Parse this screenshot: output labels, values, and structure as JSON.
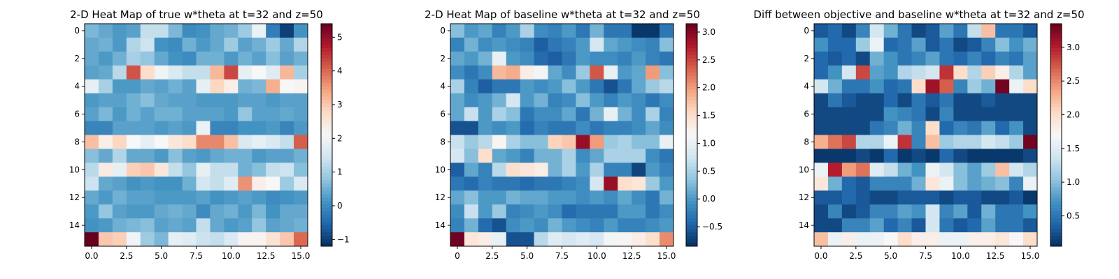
{
  "chart_data": [
    {
      "type": "heatmap",
      "title": "2-D Heat Map of true w*theta at t=32 and z=50",
      "xticks": [
        "0.0",
        "2.5",
        "5.0",
        "7.5",
        "10.0",
        "12.5",
        "15.0"
      ],
      "yticks": [
        "0",
        "2",
        "4",
        "6",
        "8",
        "10",
        "12",
        "14"
      ],
      "colorbar": {
        "min": -1.2,
        "max": 5.4,
        "ticks": [
          "−1",
          "0",
          "1",
          "2",
          "3",
          "4",
          "5"
        ],
        "tick_values": [
          -1,
          0,
          1,
          2,
          3,
          4,
          5
        ]
      },
      "colormap": "RdBu_r",
      "grid": false,
      "rows": [
        [
          0.6,
          0.4,
          0.2,
          0.3,
          1.3,
          1.3,
          0.6,
          0.0,
          0.1,
          0.4,
          0.5,
          0.9,
          1.9,
          -0.2,
          -1.0,
          0.1
        ],
        [
          0.4,
          0.5,
          0.2,
          1.1,
          1.4,
          0.1,
          0.0,
          0.5,
          0.2,
          0.4,
          0.9,
          0.3,
          0.5,
          0.9,
          0.4,
          1.1
        ],
        [
          0.4,
          0.2,
          0.5,
          1.0,
          0.8,
          0.4,
          0.1,
          0.0,
          0.5,
          0.5,
          0.2,
          0.5,
          0.3,
          0.7,
          0.3,
          0.5
        ],
        [
          0.3,
          0.4,
          1.2,
          4.2,
          2.7,
          2.0,
          1.6,
          1.3,
          1.3,
          3.2,
          4.3,
          1.8,
          2.1,
          1.7,
          3.2,
          1.0
        ],
        [
          1.8,
          1.0,
          0.2,
          0.2,
          0.4,
          0.3,
          0.5,
          0.3,
          1.8,
          2.8,
          2.3,
          0.5,
          0.6,
          3.3,
          2.1,
          2.2
        ],
        [
          0.2,
          0.3,
          0.3,
          0.5,
          0.7,
          0.4,
          0.3,
          0.3,
          0.2,
          0.2,
          0.2,
          0.3,
          0.3,
          0.2,
          0.3,
          0.3
        ],
        [
          0.3,
          0.6,
          0.2,
          0.5,
          0.3,
          0.5,
          0.5,
          0.3,
          0.3,
          0.3,
          0.2,
          0.8,
          0.3,
          0.3,
          0.4,
          0.3
        ],
        [
          -0.1,
          -0.1,
          0.3,
          0.3,
          0.3,
          0.2,
          0.3,
          0.2,
          1.9,
          -0.1,
          -0.1,
          0.1,
          0.1,
          0.2,
          -0.1,
          0.2
        ],
        [
          3.1,
          2.3,
          2.8,
          2.1,
          1.8,
          2.1,
          2.5,
          2.7,
          3.7,
          3.7,
          3.1,
          1.6,
          1.8,
          1.6,
          1.3,
          4.1
        ],
        [
          0.7,
          0.4,
          1.1,
          0.4,
          0.4,
          0.2,
          0.7,
          0.3,
          0.2,
          0.4,
          0.5,
          0.5,
          0.2,
          0.3,
          0.3,
          0.5
        ],
        [
          1.2,
          2.4,
          1.8,
          2.9,
          3.0,
          2.5,
          1.3,
          0.8,
          1.8,
          1.3,
          1.3,
          0.5,
          0.7,
          1.3,
          1.4,
          0.7
        ],
        [
          1.4,
          0.4,
          0.3,
          0.1,
          0.2,
          0.1,
          0.1,
          0.5,
          1.5,
          1.3,
          1.7,
          3.6,
          2.3,
          2.1,
          0.9,
          1.6
        ],
        [
          0.4,
          0.2,
          0.5,
          0.3,
          0.3,
          0.2,
          0.2,
          0.2,
          0.3,
          0.1,
          0.2,
          0.3,
          0.2,
          0.0,
          0.1,
          0.2
        ],
        [
          0.2,
          0.8,
          0.3,
          0.2,
          0.2,
          0.4,
          0.5,
          0.4,
          0.0,
          0.4,
          0.5,
          0.2,
          0.6,
          0.1,
          0.4,
          0.4
        ],
        [
          0.1,
          0.2,
          0.5,
          0.6,
          0.7,
          0.3,
          0.4,
          0.3,
          1.3,
          0.4,
          0.2,
          0.3,
          0.8,
          0.3,
          0.4,
          0.5
        ],
        [
          5.4,
          3.0,
          2.9,
          2.0,
          0.9,
          0.6,
          1.8,
          1.7,
          1.4,
          1.3,
          1.6,
          2.2,
          2.2,
          2.6,
          3.0,
          4.0
        ]
      ]
    },
    {
      "type": "heatmap",
      "title": "2-D Heat Map of baseline w*theta at t=32 and z=50",
      "xticks": [
        "0",
        "2.5",
        "5.0",
        "7.5",
        "10.0",
        "12.5",
        "15.0"
      ],
      "yticks": [
        "0",
        "2",
        "4",
        "6",
        "8",
        "10",
        "12",
        "14"
      ],
      "colorbar": {
        "min": -0.85,
        "max": 3.15,
        "ticks": [
          "−0.5",
          "0.0",
          "0.5",
          "1.0",
          "1.5",
          "2.0",
          "2.5",
          "3.0"
        ],
        "tick_values": [
          -0.5,
          0.0,
          0.5,
          1.0,
          1.5,
          2.0,
          2.5,
          3.0
        ]
      },
      "colormap": "RdBu_r",
      "grid": false,
      "rows": [
        [
          0.3,
          0.0,
          0.1,
          -0.2,
          0.0,
          0.5,
          -0.1,
          -0.2,
          0.0,
          -0.3,
          0.2,
          -0.3,
          -0.3,
          -0.8,
          -0.8,
          -0.3
        ],
        [
          -0.2,
          0.2,
          -0.1,
          0.0,
          -0.1,
          -0.2,
          -0.5,
          -0.3,
          -0.2,
          0.0,
          0.8,
          0.1,
          0.0,
          -0.1,
          -0.2,
          0.3
        ],
        [
          0.1,
          0.0,
          0.2,
          1.0,
          0.0,
          -0.1,
          -0.4,
          -0.5,
          -0.3,
          0.0,
          -0.1,
          -0.1,
          -0.2,
          0.0,
          -0.2,
          -0.3
        ],
        [
          -0.1,
          -0.3,
          -0.1,
          1.8,
          1.9,
          1.3,
          1.1,
          0.1,
          -0.1,
          0.4,
          2.4,
          1.0,
          0.0,
          0.1,
          2.0,
          0.3
        ],
        [
          0.5,
          -0.2,
          -0.5,
          -0.3,
          -0.3,
          0.0,
          -0.1,
          0.0,
          0.3,
          0.0,
          -0.3,
          -0.6,
          -0.3,
          0.1,
          0.4,
          0.6
        ],
        [
          0.1,
          -0.1,
          0.0,
          0.2,
          0.8,
          0.0,
          0.2,
          -0.2,
          -0.1,
          0.3,
          0.0,
          -0.2,
          0.0,
          -0.1,
          -0.3,
          -0.1
        ],
        [
          0.1,
          0.7,
          0.0,
          0.5,
          0.3,
          -0.3,
          -0.1,
          -0.1,
          0.1,
          -0.3,
          0.2,
          1.0,
          0.2,
          -0.1,
          0.5,
          -0.2
        ],
        [
          -0.6,
          -0.6,
          0.0,
          -0.1,
          0.0,
          -0.4,
          -0.2,
          -0.3,
          -0.3,
          -0.1,
          -0.3,
          -0.2,
          -0.2,
          -0.1,
          0.1,
          -0.1
        ],
        [
          0.7,
          0.4,
          0.6,
          1.2,
          0.5,
          0.3,
          0.3,
          1.6,
          1.7,
          2.9,
          2.0,
          0.4,
          0.5,
          0.3,
          0.3,
          1.0
        ],
        [
          0.8,
          0.3,
          1.5,
          0.1,
          0.0,
          -0.2,
          0.2,
          0.2,
          0.5,
          -0.1,
          0.1,
          0.5,
          0.5,
          0.5,
          -0.1,
          -0.3
        ],
        [
          -0.5,
          0.1,
          -0.2,
          0.6,
          1.5,
          1.4,
          1.3,
          0.2,
          0.5,
          0.0,
          0.5,
          -0.2,
          -0.2,
          -0.7,
          0.0,
          -0.2
        ],
        [
          -0.3,
          -0.4,
          -0.2,
          -0.3,
          -0.3,
          -0.4,
          -0.3,
          -0.3,
          -0.2,
          -0.1,
          0.8,
          2.9,
          1.5,
          1.4,
          0.4,
          0.0
        ],
        [
          0.1,
          0.3,
          0.0,
          0.0,
          0.2,
          0.1,
          0.1,
          0.0,
          0.0,
          -0.1,
          0.0,
          -0.1,
          0.1,
          -0.1,
          -0.3,
          0.2
        ],
        [
          -0.1,
          0.7,
          0.0,
          0.4,
          -0.2,
          -0.1,
          0.0,
          -0.1,
          -0.4,
          -0.3,
          -0.3,
          -0.3,
          0.0,
          0.0,
          -0.3,
          -0.1
        ],
        [
          -0.2,
          0.2,
          -0.4,
          -0.6,
          -0.1,
          0.0,
          -0.1,
          0.2,
          0.0,
          -0.1,
          -0.2,
          0.0,
          -0.2,
          -0.2,
          -0.1,
          0.0
        ],
        [
          3.1,
          1.4,
          1.3,
          1.0,
          -0.6,
          -0.6,
          0.6,
          0.9,
          0.8,
          0.9,
          0.8,
          1.1,
          1.2,
          1.3,
          1.5,
          2.1
        ]
      ]
    },
    {
      "type": "heatmap",
      "title": "Diff between objective and baseline w*theta at t=32 and z=50",
      "xticks": [
        "0.0",
        "2.5",
        "5.0",
        "7.5",
        "10.0",
        "12.5",
        "15.0"
      ],
      "yticks": [
        "0",
        "2",
        "4",
        "6",
        "8",
        "10",
        "12",
        "14"
      ],
      "colorbar": {
        "min": 0.05,
        "max": 3.35,
        "ticks": [
          "0.5",
          "1.0",
          "1.5",
          "2.0",
          "2.5",
          "3.0"
        ],
        "tick_values": [
          0.5,
          1.0,
          1.5,
          2.0,
          2.5,
          3.0
        ]
      },
      "colormap": "RdBu_r",
      "grid": false,
      "rows": [
        [
          0.3,
          0.4,
          0.2,
          0.6,
          1.4,
          0.9,
          0.5,
          0.2,
          0.3,
          0.8,
          0.5,
          1.3,
          2.2,
          0.5,
          0.5,
          0.3
        ],
        [
          0.7,
          0.4,
          0.4,
          1.1,
          1.6,
          0.4,
          0.5,
          0.8,
          0.3,
          0.5,
          0.2,
          0.3,
          0.6,
          1.0,
          0.7,
          0.9
        ],
        [
          0.4,
          0.3,
          0.4,
          0.2,
          0.9,
          0.7,
          0.5,
          0.6,
          0.8,
          0.5,
          0.4,
          0.6,
          0.4,
          0.6,
          0.5,
          0.8
        ],
        [
          0.4,
          0.7,
          1.4,
          2.8,
          0.8,
          0.7,
          1.2,
          1.3,
          1.4,
          2.9,
          2.0,
          1.2,
          2.1,
          1.8,
          1.2,
          0.8
        ],
        [
          1.4,
          0.9,
          0.5,
          0.5,
          0.7,
          0.4,
          0.5,
          2.0,
          3.1,
          2.7,
          0.6,
          1.1,
          0.9,
          3.3,
          1.6,
          2.0
        ],
        [
          0.2,
          0.5,
          0.3,
          0.2,
          0.2,
          0.4,
          0.2,
          0.5,
          0.3,
          0.5,
          0.2,
          0.2,
          0.3,
          0.2,
          0.2,
          0.2
        ],
        [
          0.2,
          0.2,
          0.2,
          0.2,
          0.2,
          0.7,
          0.6,
          0.5,
          0.2,
          0.6,
          0.2,
          0.2,
          0.2,
          0.2,
          0.2,
          0.2
        ],
        [
          0.2,
          0.2,
          0.2,
          0.2,
          0.5,
          0.6,
          0.9,
          0.6,
          2.0,
          0.4,
          0.6,
          0.5,
          0.8,
          0.4,
          0.7,
          0.2
        ],
        [
          2.3,
          2.6,
          2.8,
          1.2,
          1.2,
          1.6,
          2.9,
          0.6,
          2.2,
          1.1,
          1.2,
          1.2,
          1.4,
          1.3,
          1.1,
          3.3
        ],
        [
          0.1,
          0.1,
          0.1,
          0.2,
          0.1,
          0.4,
          0.1,
          0.2,
          0.1,
          0.4,
          0.2,
          0.1,
          0.1,
          0.1,
          0.1,
          0.2
        ],
        [
          1.6,
          3.0,
          2.4,
          2.6,
          1.5,
          1.3,
          0.9,
          0.7,
          1.6,
          1.4,
          1.0,
          0.8,
          1.1,
          2.2,
          1.4,
          1.2
        ],
        [
          1.9,
          0.9,
          0.4,
          0.3,
          0.6,
          0.6,
          0.6,
          0.9,
          1.9,
          1.6,
          1.0,
          0.8,
          0.9,
          1.0,
          0.6,
          1.6
        ],
        [
          0.3,
          0.3,
          0.4,
          0.3,
          0.2,
          0.2,
          0.3,
          0.3,
          0.3,
          0.2,
          0.3,
          0.3,
          0.2,
          0.2,
          0.3,
          0.1
        ],
        [
          0.2,
          0.6,
          0.2,
          0.3,
          0.6,
          0.6,
          0.8,
          0.7,
          1.4,
          0.6,
          0.8,
          0.3,
          0.9,
          0.5,
          0.5,
          0.7
        ],
        [
          0.2,
          0.2,
          0.6,
          0.6,
          0.8,
          0.4,
          0.6,
          0.3,
          1.4,
          0.5,
          0.3,
          0.4,
          0.8,
          0.5,
          0.5,
          0.3
        ],
        [
          2.2,
          1.6,
          1.8,
          1.6,
          1.6,
          1.7,
          2.0,
          1.8,
          1.8,
          1.6,
          1.6,
          1.8,
          1.8,
          1.9,
          1.7,
          2.0
        ]
      ]
    }
  ]
}
